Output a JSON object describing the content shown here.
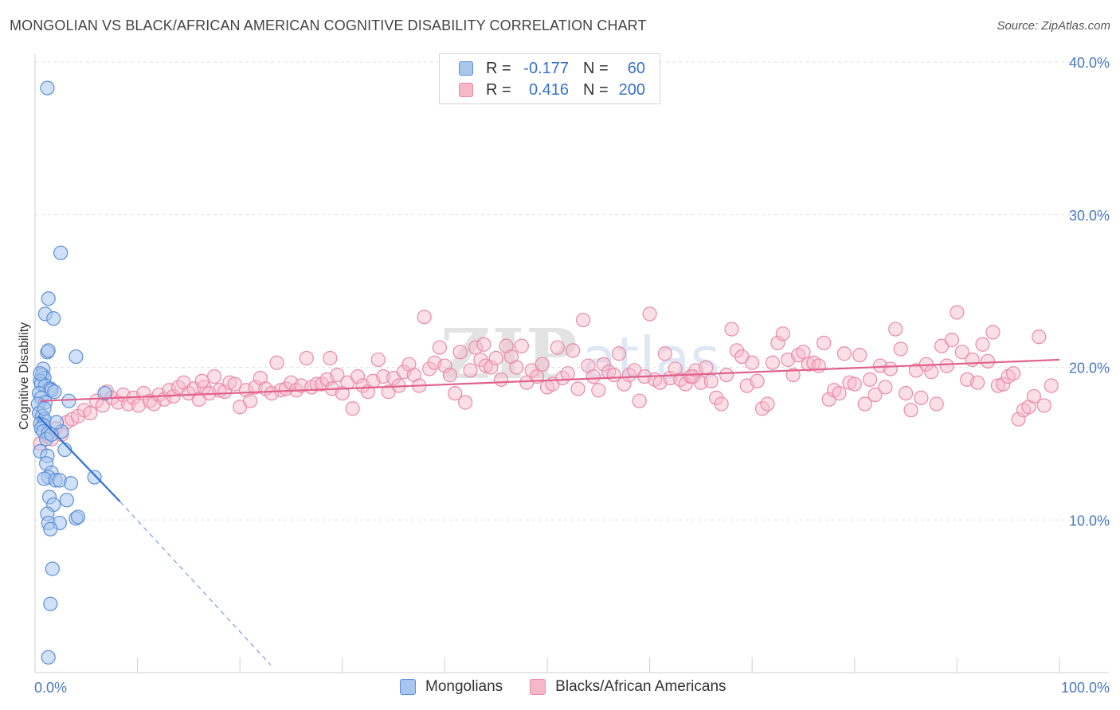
{
  "header": {
    "title": "MONGOLIAN VS BLACK/AFRICAN AMERICAN COGNITIVE DISABILITY CORRELATION CHART",
    "source": "Source: ZipAtlas.com"
  },
  "legend": {
    "rows": [
      {
        "r_label": "R =",
        "r_value": "-0.177",
        "n_label": "N =",
        "n_value": "60"
      },
      {
        "r_label": "R =",
        "r_value": "0.416",
        "n_label": "N =",
        "n_value": "200"
      }
    ]
  },
  "bottom_legend": {
    "items": [
      {
        "label": "Mongolians"
      },
      {
        "label": "Blacks/African Americans"
      }
    ]
  },
  "colors": {
    "mongolian_fill": "#a9c6ef",
    "mongolian_stroke": "#5b8fd6",
    "mongolian_line": "#2f72d4",
    "black_fill": "#f6b8c9",
    "black_stroke": "#e98aa8",
    "black_line": "#e0618b",
    "grid": "#e2e2e2",
    "axis_text": "#4a78c2"
  },
  "chart_data": {
    "type": "scatter",
    "title": "MONGOLIAN VS BLACK/AFRICAN AMERICAN COGNITIVE DISABILITY CORRELATION CHART",
    "xlabel": "",
    "ylabel": "Cognitive Disability",
    "xlim": [
      0,
      100
    ],
    "ylim": [
      0,
      40
    ],
    "x_tick_labels": [
      "0.0%",
      "100.0%"
    ],
    "y_ticks": [
      10,
      20,
      30,
      40
    ],
    "y_tick_labels": [
      "10.0%",
      "20.0%",
      "30.0%",
      "40.0%"
    ],
    "grid": true,
    "series": [
      {
        "name": "Mongolians",
        "r": -0.177,
        "n": 60,
        "trend": {
          "x0": 0.3,
          "y0": 16.8,
          "x1": 8.3,
          "y1": 11.2,
          "dashed_to_x": 23.0,
          "dashed_to_y": 0.5
        },
        "points": [
          [
            1.2,
            38.3
          ],
          [
            2.5,
            27.5
          ],
          [
            1.3,
            24.5
          ],
          [
            1.0,
            23.5
          ],
          [
            1.8,
            23.2
          ],
          [
            1.2,
            21.0
          ],
          [
            1.3,
            21.1
          ],
          [
            4.0,
            20.7
          ],
          [
            0.8,
            19.9
          ],
          [
            0.7,
            19.5
          ],
          [
            0.9,
            19.3
          ],
          [
            0.5,
            19.1
          ],
          [
            0.6,
            18.9
          ],
          [
            1.0,
            18.8
          ],
          [
            1.5,
            18.6
          ],
          [
            1.6,
            18.5
          ],
          [
            0.4,
            18.3
          ],
          [
            0.6,
            18.0
          ],
          [
            6.8,
            18.3
          ],
          [
            1.0,
            17.7
          ],
          [
            0.3,
            17.6
          ],
          [
            3.3,
            17.8
          ],
          [
            0.4,
            17.0
          ],
          [
            0.7,
            16.8
          ],
          [
            0.9,
            16.6
          ],
          [
            0.5,
            16.3
          ],
          [
            0.8,
            16.2
          ],
          [
            0.6,
            16.0
          ],
          [
            0.8,
            15.8
          ],
          [
            1.3,
            15.7
          ],
          [
            1.1,
            15.3
          ],
          [
            2.6,
            15.8
          ],
          [
            0.5,
            14.5
          ],
          [
            2.9,
            14.6
          ],
          [
            1.2,
            14.2
          ],
          [
            1.1,
            13.7
          ],
          [
            1.6,
            13.1
          ],
          [
            1.3,
            12.8
          ],
          [
            0.9,
            12.7
          ],
          [
            2.0,
            12.6
          ],
          [
            2.4,
            12.6
          ],
          [
            3.5,
            12.4
          ],
          [
            5.8,
            12.8
          ],
          [
            1.4,
            11.5
          ],
          [
            3.1,
            11.3
          ],
          [
            1.8,
            11.0
          ],
          [
            1.2,
            10.4
          ],
          [
            4.0,
            10.1
          ],
          [
            4.2,
            10.2
          ],
          [
            1.3,
            9.8
          ],
          [
            2.4,
            9.8
          ],
          [
            1.5,
            9.4
          ],
          [
            1.7,
            6.8
          ],
          [
            1.5,
            4.5
          ],
          [
            1.3,
            1.0
          ],
          [
            0.9,
            17.3
          ],
          [
            2.1,
            16.4
          ],
          [
            0.5,
            19.6
          ],
          [
            1.9,
            18.4
          ],
          [
            1.6,
            15.6
          ]
        ]
      },
      {
        "name": "Blacks/African Americans",
        "r": 0.416,
        "n": 200,
        "trend": {
          "x0": 0.5,
          "y0": 17.8,
          "x1": 100,
          "y1": 20.5
        },
        "points": [
          [
            0.5,
            15.0
          ],
          [
            1.2,
            15.5
          ],
          [
            1.6,
            15.3
          ],
          [
            2.0,
            16.0
          ],
          [
            2.6,
            15.6
          ],
          [
            3.1,
            16.4
          ],
          [
            3.6,
            16.6
          ],
          [
            4.2,
            16.8
          ],
          [
            4.8,
            17.2
          ],
          [
            5.4,
            17.0
          ],
          [
            6.0,
            17.8
          ],
          [
            6.6,
            17.5
          ],
          [
            7.0,
            18.4
          ],
          [
            7.5,
            18.0
          ],
          [
            8.1,
            17.7
          ],
          [
            8.6,
            18.2
          ],
          [
            9.1,
            17.6
          ],
          [
            9.6,
            18.0
          ],
          [
            10.1,
            17.5
          ],
          [
            10.6,
            18.3
          ],
          [
            11.2,
            17.8
          ],
          [
            11.6,
            17.6
          ],
          [
            12.1,
            18.2
          ],
          [
            12.6,
            17.9
          ],
          [
            13.1,
            18.5
          ],
          [
            13.5,
            18.1
          ],
          [
            14.0,
            18.7
          ],
          [
            14.5,
            19.0
          ],
          [
            15.0,
            18.3
          ],
          [
            15.5,
            18.6
          ],
          [
            16.0,
            17.9
          ],
          [
            16.5,
            18.7
          ],
          [
            17.0,
            18.3
          ],
          [
            17.5,
            19.4
          ],
          [
            18.0,
            18.5
          ],
          [
            18.5,
            18.4
          ],
          [
            19.0,
            19.0
          ],
          [
            19.5,
            18.9
          ],
          [
            20.0,
            17.4
          ],
          [
            20.6,
            18.5
          ],
          [
            21.0,
            17.8
          ],
          [
            21.5,
            18.7
          ],
          [
            22.0,
            19.3
          ],
          [
            22.5,
            18.6
          ],
          [
            23.1,
            18.3
          ],
          [
            23.6,
            20.3
          ],
          [
            24.0,
            18.5
          ],
          [
            24.5,
            18.6
          ],
          [
            25.0,
            19.0
          ],
          [
            25.5,
            18.5
          ],
          [
            26.0,
            18.8
          ],
          [
            26.5,
            20.6
          ],
          [
            27.0,
            18.7
          ],
          [
            27.5,
            18.9
          ],
          [
            28.0,
            18.9
          ],
          [
            28.5,
            19.2
          ],
          [
            29.0,
            18.6
          ],
          [
            29.5,
            19.5
          ],
          [
            30.0,
            18.3
          ],
          [
            30.5,
            19.0
          ],
          [
            31.0,
            17.3
          ],
          [
            31.5,
            19.4
          ],
          [
            32.0,
            18.8
          ],
          [
            32.5,
            18.4
          ],
          [
            33.0,
            19.1
          ],
          [
            33.5,
            20.5
          ],
          [
            34.0,
            19.4
          ],
          [
            34.5,
            18.4
          ],
          [
            35.0,
            19.3
          ],
          [
            35.5,
            18.8
          ],
          [
            36.0,
            19.7
          ],
          [
            36.5,
            20.2
          ],
          [
            37.0,
            19.5
          ],
          [
            37.5,
            18.8
          ],
          [
            38.0,
            23.3
          ],
          [
            38.5,
            19.9
          ],
          [
            39.0,
            20.3
          ],
          [
            39.5,
            21.3
          ],
          [
            40.0,
            20.1
          ],
          [
            40.5,
            19.5
          ],
          [
            41.0,
            18.3
          ],
          [
            41.5,
            21.0
          ],
          [
            42.0,
            17.7
          ],
          [
            42.5,
            19.8
          ],
          [
            43.0,
            21.3
          ],
          [
            43.5,
            20.5
          ],
          [
            44.0,
            20.1
          ],
          [
            44.5,
            20.0
          ],
          [
            45.0,
            20.6
          ],
          [
            45.5,
            19.2
          ],
          [
            46.0,
            21.4
          ],
          [
            46.5,
            20.7
          ],
          [
            47.0,
            20.0
          ],
          [
            47.5,
            21.4
          ],
          [
            48.0,
            19.0
          ],
          [
            48.5,
            19.8
          ],
          [
            49.0,
            19.4
          ],
          [
            49.5,
            20.2
          ],
          [
            50.0,
            18.7
          ],
          [
            50.5,
            18.9
          ],
          [
            51.0,
            21.3
          ],
          [
            51.5,
            19.3
          ],
          [
            52.0,
            19.6
          ],
          [
            52.5,
            21.1
          ],
          [
            53.0,
            18.6
          ],
          [
            53.5,
            23.1
          ],
          [
            54.0,
            20.1
          ],
          [
            54.5,
            19.4
          ],
          [
            55.0,
            18.5
          ],
          [
            55.5,
            20.2
          ],
          [
            56.0,
            19.7
          ],
          [
            56.5,
            19.5
          ],
          [
            57.0,
            20.9
          ],
          [
            57.5,
            18.9
          ],
          [
            58.0,
            19.5
          ],
          [
            58.5,
            19.8
          ],
          [
            59.0,
            17.8
          ],
          [
            59.5,
            19.4
          ],
          [
            60.0,
            23.5
          ],
          [
            60.5,
            19.2
          ],
          [
            61.0,
            19.0
          ],
          [
            61.5,
            20.9
          ],
          [
            62.0,
            19.3
          ],
          [
            62.5,
            19.9
          ],
          [
            63.0,
            19.2
          ],
          [
            63.5,
            18.9
          ],
          [
            64.0,
            19.4
          ],
          [
            64.5,
            19.8
          ],
          [
            65.0,
            19.0
          ],
          [
            65.5,
            20.0
          ],
          [
            66.0,
            19.1
          ],
          [
            66.5,
            18.0
          ],
          [
            67.0,
            17.6
          ],
          [
            67.5,
            19.5
          ],
          [
            68.0,
            22.5
          ],
          [
            68.5,
            21.1
          ],
          [
            69.0,
            20.7
          ],
          [
            69.5,
            18.8
          ],
          [
            70.0,
            20.3
          ],
          [
            70.5,
            19.1
          ],
          [
            71.0,
            17.3
          ],
          [
            71.5,
            17.6
          ],
          [
            72.0,
            20.3
          ],
          [
            72.5,
            21.6
          ],
          [
            73.0,
            22.2
          ],
          [
            73.5,
            20.5
          ],
          [
            74.0,
            19.5
          ],
          [
            74.5,
            20.8
          ],
          [
            75.0,
            21.0
          ],
          [
            75.5,
            20.2
          ],
          [
            76.0,
            20.3
          ],
          [
            76.5,
            20.1
          ],
          [
            77.0,
            21.6
          ],
          [
            77.5,
            17.9
          ],
          [
            78.0,
            18.5
          ],
          [
            78.5,
            18.3
          ],
          [
            79.0,
            20.9
          ],
          [
            79.5,
            19.0
          ],
          [
            80.0,
            18.9
          ],
          [
            80.5,
            20.8
          ],
          [
            81.0,
            17.6
          ],
          [
            81.5,
            19.2
          ],
          [
            82.0,
            18.2
          ],
          [
            82.5,
            20.1
          ],
          [
            83.0,
            18.7
          ],
          [
            83.5,
            19.9
          ],
          [
            84.0,
            22.5
          ],
          [
            84.5,
            21.2
          ],
          [
            85.0,
            18.3
          ],
          [
            85.5,
            17.2
          ],
          [
            86.0,
            19.8
          ],
          [
            86.5,
            18.0
          ],
          [
            87.0,
            20.2
          ],
          [
            87.5,
            19.7
          ],
          [
            88.0,
            17.6
          ],
          [
            88.5,
            21.4
          ],
          [
            89.0,
            20.1
          ],
          [
            89.5,
            21.8
          ],
          [
            90.0,
            23.6
          ],
          [
            90.5,
            21.0
          ],
          [
            91.0,
            19.2
          ],
          [
            91.5,
            20.5
          ],
          [
            92.0,
            19.0
          ],
          [
            92.5,
            21.5
          ],
          [
            93.0,
            20.4
          ],
          [
            93.5,
            22.3
          ],
          [
            94.0,
            18.8
          ],
          [
            94.5,
            18.9
          ],
          [
            95.0,
            19.4
          ],
          [
            95.5,
            19.6
          ],
          [
            96.0,
            16.6
          ],
          [
            96.5,
            17.2
          ],
          [
            97.0,
            17.4
          ],
          [
            97.5,
            18.1
          ],
          [
            98.0,
            22.0
          ],
          [
            98.5,
            17.5
          ],
          [
            99.2,
            18.8
          ],
          [
            16.3,
            19.1
          ],
          [
            28.8,
            20.6
          ],
          [
            43.8,
            21.5
          ],
          [
            64.2,
            19.4
          ]
        ]
      }
    ]
  }
}
